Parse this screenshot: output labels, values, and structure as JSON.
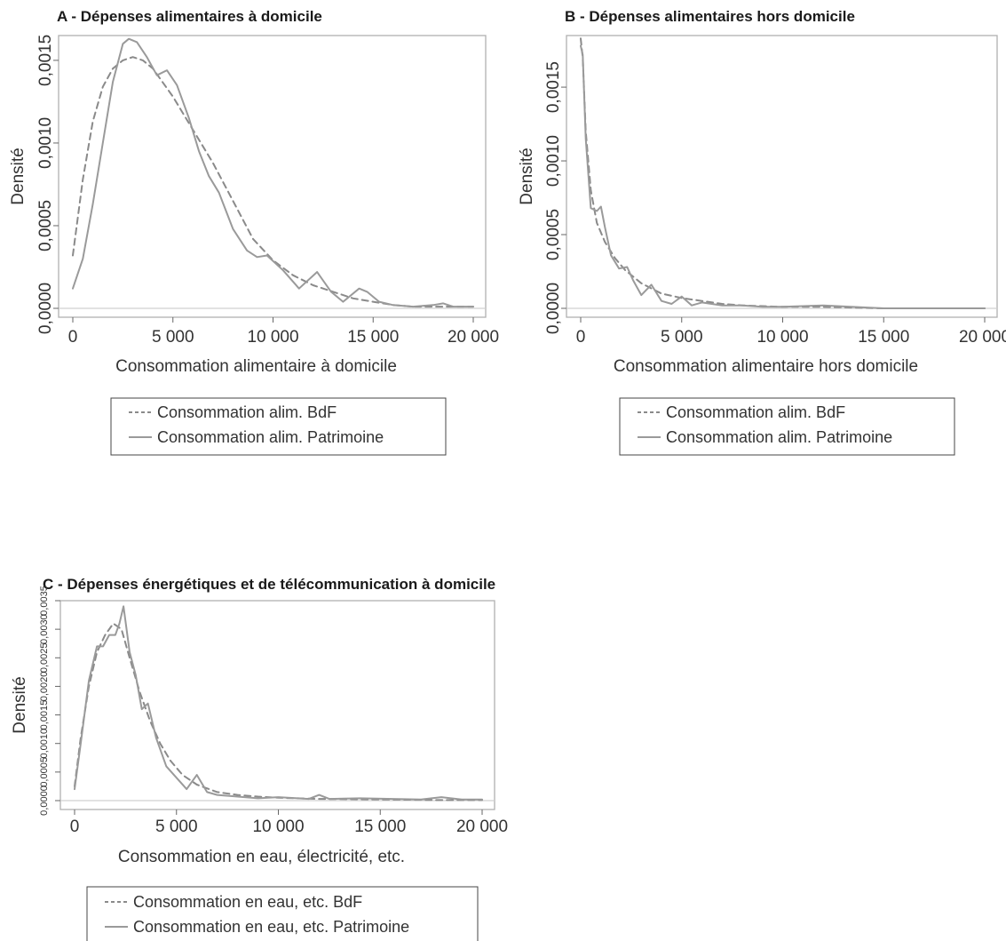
{
  "chart_data": [
    {
      "type": "line",
      "title": "A - Dépenses alimentaires à domicile",
      "xlabel": "Consommation alimentaire à domicile",
      "ylabel": "Densité",
      "xlim": [
        0,
        20000
      ],
      "ylim": [
        0,
        0.00165
      ],
      "xticks": [
        0,
        5000,
        10000,
        15000,
        20000
      ],
      "xtick_labels": [
        "0",
        "5 000",
        "10 000",
        "15 000",
        "20 000"
      ],
      "yticks": [
        0,
        0.0005,
        0.001,
        0.0015
      ],
      "ytick_labels": [
        "0,0000",
        "0,0005",
        "0,0010",
        "0,0015"
      ],
      "legend": {
        "position": "below",
        "entries": [
          "Consommation alim. BdF",
          "Consommation alim. Patrimoine"
        ]
      },
      "series": [
        {
          "name": "Consommation alim. BdF",
          "style": "dashed",
          "x": [
            0,
            500,
            1000,
            1500,
            2000,
            2500,
            3000,
            3500,
            4000,
            5000,
            6000,
            7000,
            8000,
            9000,
            10000,
            11000,
            12000,
            13000,
            14000,
            15000,
            16000,
            17000,
            18000,
            19000,
            20000
          ],
          "y": [
            0.00032,
            0.00078,
            0.00113,
            0.00134,
            0.00145,
            0.0015,
            0.00152,
            0.0015,
            0.00145,
            0.00128,
            0.00108,
            0.00088,
            0.00065,
            0.00042,
            0.00029,
            0.0002,
            0.00014,
            0.0001,
            6e-05,
            4e-05,
            2e-05,
            1e-05,
            1e-05,
            1e-05,
            1e-05
          ]
        },
        {
          "name": "Consommation alim. Patrimoine",
          "style": "solid",
          "x": [
            0,
            500,
            1000,
            1500,
            2000,
            2500,
            2800,
            3200,
            3700,
            4200,
            4700,
            5200,
            5800,
            6300,
            6800,
            7300,
            8000,
            8700,
            9200,
            9700,
            10500,
            11300,
            12200,
            12900,
            13500,
            14300,
            14700,
            15300,
            16000,
            17000,
            18000,
            18500,
            19000,
            20000
          ],
          "y": [
            0.00012,
            0.0003,
            0.00063,
            0.001,
            0.00137,
            0.0016,
            0.00163,
            0.00161,
            0.00152,
            0.00141,
            0.00144,
            0.00135,
            0.00115,
            0.00095,
            0.0008,
            0.0007,
            0.00048,
            0.00035,
            0.00031,
            0.00032,
            0.00023,
            0.00012,
            0.00022,
            0.0001,
            4e-05,
            0.00012,
            0.0001,
            4e-05,
            2e-05,
            1e-05,
            2e-05,
            3e-05,
            1e-05,
            1e-05
          ]
        }
      ]
    },
    {
      "type": "line",
      "title": "B - Dépenses alimentaires hors domicile",
      "xlabel": "Consommation alimentaire hors domicile",
      "ylabel": "Densité",
      "xlim": [
        0,
        20000
      ],
      "ylim": [
        0,
        0.00185
      ],
      "xticks": [
        0,
        5000,
        10000,
        15000,
        20000
      ],
      "xtick_labels": [
        "0",
        "5 000",
        "10 000",
        "15 000",
        "20 000"
      ],
      "yticks": [
        0,
        0.0005,
        0.001,
        0.0015
      ],
      "ytick_labels": [
        "0,0000",
        "0,0005",
        "0,0010",
        "0,0015"
      ],
      "legend": {
        "position": "below",
        "entries": [
          "Consommation alim. BdF",
          "Consommation alim. Patrimoine"
        ]
      },
      "series": [
        {
          "name": "Consommation alim. BdF",
          "style": "dashed",
          "x": [
            0,
            100,
            250,
            500,
            800,
            1200,
            1700,
            2200,
            3000,
            4000,
            5000,
            6000,
            7000,
            8000,
            10000,
            12000,
            15000,
            20000
          ],
          "y": [
            0.00183,
            0.0017,
            0.0012,
            0.0008,
            0.00058,
            0.00045,
            0.00034,
            0.00026,
            0.00017,
            0.0001,
            7e-05,
            5e-05,
            3e-05,
            2e-05,
            1e-05,
            1e-05,
            0,
            0
          ]
        },
        {
          "name": "Consommation alim. Patrimoine",
          "style": "solid",
          "x": [
            0,
            100,
            250,
            500,
            800,
            1000,
            1200,
            1500,
            1900,
            2300,
            2600,
            3000,
            3500,
            4000,
            4500,
            5000,
            5500,
            6000,
            7000,
            8000,
            9000,
            10000,
            12000,
            15000,
            20000
          ],
          "y": [
            0.00178,
            0.00172,
            0.00115,
            0.00068,
            0.00066,
            0.00069,
            0.00055,
            0.00036,
            0.00027,
            0.00028,
            0.00019,
            9e-05,
            0.00016,
            5e-05,
            3e-05,
            8e-05,
            2e-05,
            4e-05,
            2e-05,
            2e-05,
            1e-05,
            1e-05,
            2e-05,
            0,
            0
          ]
        }
      ]
    },
    {
      "type": "line",
      "title": "C -  Dépenses énergétiques et de télécommunication à domicile",
      "xlabel": "Consommation en eau, électricité, etc.",
      "ylabel": "Densité",
      "xlim": [
        0,
        20000
      ],
      "ylim": [
        0,
        0.0035
      ],
      "xticks": [
        0,
        5000,
        10000,
        15000,
        20000
      ],
      "xtick_labels": [
        "0",
        "5 000",
        "10 000",
        "15 000",
        "20 000"
      ],
      "yticks": [
        0,
        0.0005,
        0.001,
        0.0015,
        0.002,
        0.0025,
        0.003,
        0.0035
      ],
      "ytick_labels": [
        "0,0000",
        "0,0005",
        "0,0010",
        "0,0015",
        "0,0020",
        "0,0025",
        "0,0030",
        "0,0035"
      ],
      "legend": {
        "position": "below",
        "entries": [
          "Consommation en eau, etc. BdF",
          "Consommation en eau, etc. Patrimoine"
        ]
      },
      "series": [
        {
          "name": "Consommation en eau, etc. BdF",
          "style": "dashed",
          "x": [
            0,
            300,
            700,
            1100,
            1500,
            1900,
            2300,
            2700,
            3200,
            3700,
            4200,
            4700,
            5300,
            6000,
            7000,
            8000,
            9000,
            10000,
            12000,
            15000,
            18000,
            20000
          ],
          "y": [
            0.00025,
            0.0011,
            0.002,
            0.0026,
            0.0029,
            0.0031,
            0.003,
            0.0025,
            0.0019,
            0.0014,
            0.001,
            0.0007,
            0.00045,
            0.00028,
            0.00015,
            0.0001,
            7e-05,
            5e-05,
            3e-05,
            2e-05,
            1e-05,
            1e-05
          ]
        },
        {
          "name": "Consommation en eau, etc. Patrimoine",
          "style": "solid",
          "x": [
            0,
            300,
            700,
            1100,
            1400,
            1700,
            2000,
            2200,
            2400,
            2700,
            3000,
            3300,
            3600,
            4000,
            4500,
            5000,
            5500,
            6000,
            6500,
            7000,
            8000,
            9000,
            10000,
            11500,
            12000,
            12500,
            14000,
            17000,
            18000,
            19000,
            20000
          ],
          "y": [
            0.0002,
            0.001,
            0.0021,
            0.0027,
            0.0027,
            0.0029,
            0.0029,
            0.0031,
            0.0034,
            0.0026,
            0.0022,
            0.0016,
            0.0017,
            0.0011,
            0.0006,
            0.0004,
            0.0002,
            0.00045,
            0.00015,
            0.0001,
            7e-05,
            4e-05,
            6e-05,
            3e-05,
            0.0001,
            3e-05,
            4e-05,
            2e-05,
            6e-05,
            2e-05,
            2e-05
          ]
        }
      ]
    }
  ]
}
